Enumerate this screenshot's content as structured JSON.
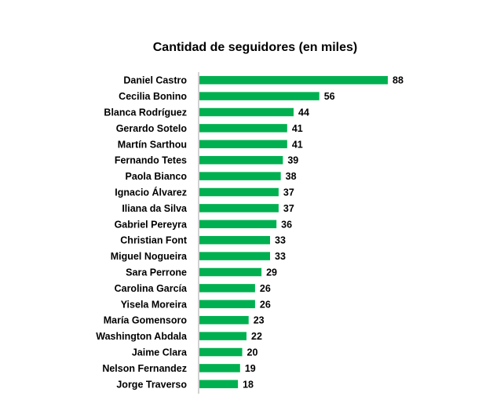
{
  "chart_data": {
    "type": "bar",
    "orientation": "horizontal",
    "title": "Cantidad de seguidores (en miles)",
    "xlabel": "",
    "ylabel": "",
    "categories": [
      "Daniel Castro",
      "Cecilia Bonino",
      "Blanca Rodríguez",
      "Gerardo Sotelo",
      "Martín Sarthou",
      "Fernando Tetes",
      "Paola Bianco",
      "Ignacio Álvarez",
      "Iliana da Silva",
      "Gabriel Pereyra",
      "Christian Font",
      "Miguel Nogueira",
      "Sara Perrone",
      "Carolina García",
      "Yisela Moreira",
      "María Gomensoro",
      "Washington  Abdala",
      "Jaime Clara",
      "Nelson Fernandez",
      "Jorge Traverso"
    ],
    "values": [
      88,
      56,
      44,
      41,
      41,
      39,
      38,
      37,
      37,
      36,
      33,
      33,
      29,
      26,
      26,
      23,
      22,
      20,
      19,
      18
    ],
    "value_labels": [
      "88",
      "56",
      "44",
      "41",
      "41",
      "39",
      "38",
      "37",
      "37",
      "36",
      "33",
      "33",
      "29",
      "26",
      "26",
      "23",
      "22",
      "20",
      "19",
      "18"
    ],
    "xlim": [
      0,
      90
    ],
    "grid": false,
    "legend": "none",
    "bar_color": "#00b050",
    "axis_color": "#a6a6a6"
  }
}
